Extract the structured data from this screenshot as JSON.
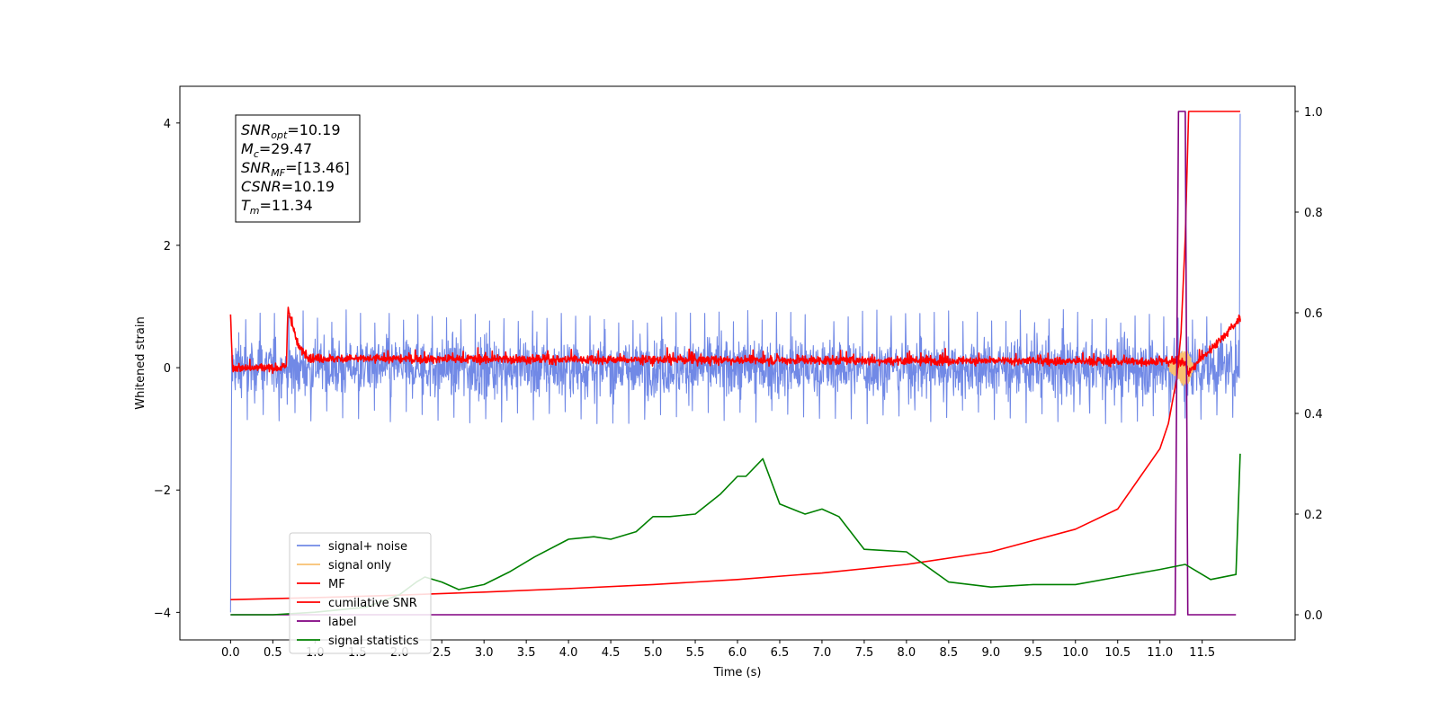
{
  "chart_data": {
    "type": "line",
    "title": "",
    "xlabel": "Time (s)",
    "ylabel": "Whitened strain",
    "y2label": "",
    "xlim": [
      -0.6,
      12.6
    ],
    "ylim": [
      -4.45,
      4.6
    ],
    "y2lim": [
      -0.05,
      1.05
    ],
    "x_ticks": [
      0.0,
      0.5,
      1.0,
      1.5,
      2.0,
      2.5,
      3.0,
      3.5,
      4.0,
      4.5,
      5.0,
      5.5,
      6.0,
      6.5,
      7.0,
      7.5,
      8.0,
      8.5,
      9.0,
      9.5,
      10.0,
      10.5,
      11.0,
      11.5
    ],
    "x_tick_labels": [
      "0.0",
      "0.5",
      "1.0",
      "1.5",
      "2.0",
      "2.5",
      "3.0",
      "3.5",
      "4.0",
      "4.5",
      "5.0",
      "5.5",
      "6.0",
      "6.5",
      "7.0",
      "7.5",
      "8.0",
      "8.5",
      "9.0",
      "9.5",
      "10.0",
      "10.5",
      "11.0",
      "11.5"
    ],
    "y_ticks": [
      -4,
      -2,
      0,
      2,
      4
    ],
    "y_tick_labels": [
      "−4",
      "−2",
      "0",
      "2",
      "4"
    ],
    "y2_ticks": [
      0.0,
      0.2,
      0.4,
      0.6,
      0.8,
      1.0
    ],
    "y2_tick_labels": [
      "0.0",
      "0.2",
      "0.4",
      "0.6",
      "0.8",
      "1.0"
    ],
    "grid": false,
    "legend_position": "lower-left",
    "annotation": [
      {
        "sym": "SNR",
        "sub": "opt",
        "val": "=10.19"
      },
      {
        "sym": "M",
        "sub": "c",
        "val": "=29.47"
      },
      {
        "sym": "SNR",
        "sub": "MF",
        "val": "=[13.46]"
      },
      {
        "sym": "CSNR",
        "sub": "",
        "val": "=10.19"
      },
      {
        "sym": "T",
        "sub": "m",
        "val": "=11.34"
      }
    ],
    "series": [
      {
        "name": "signal+ noise",
        "color": "#7189e6",
        "axis": "left",
        "style": "noise",
        "x_range": [
          0.0,
          11.95
        ],
        "amplitude": 0.28,
        "peak_max": 0.95,
        "peak_min": -0.92,
        "start_value": -4.0,
        "end_value": 4.15
      },
      {
        "name": "signal only",
        "color": "#f8c070",
        "axis": "left",
        "style": "chirp",
        "x": [
          11.1,
          11.2,
          11.28,
          11.34,
          11.4
        ],
        "envelope": [
          0.05,
          0.15,
          0.3,
          0.25,
          0.0
        ]
      },
      {
        "name": "MF",
        "color": "#ff0000",
        "axis": "left",
        "style": "mf",
        "x_range": [
          0.0,
          11.95
        ],
        "amplitude": 0.05,
        "points": [
          [
            0.0,
            0.87
          ],
          [
            0.02,
            0.1
          ],
          [
            0.66,
            0.0
          ],
          [
            0.68,
            1.0
          ],
          [
            0.72,
            0.75
          ],
          [
            0.8,
            0.35
          ],
          [
            0.95,
            0.15
          ],
          [
            11.3,
            0.1
          ],
          [
            11.32,
            -0.1
          ],
          [
            11.95,
            0.8
          ]
        ]
      },
      {
        "name": "cumilative SNR",
        "color": "#ff0000",
        "axis": "right",
        "x": [
          0.0,
          1.0,
          2.0,
          3.0,
          4.0,
          5.0,
          6.0,
          7.0,
          8.0,
          9.0,
          10.0,
          10.5,
          11.0,
          11.1,
          11.2,
          11.25,
          11.3,
          11.34,
          11.36,
          11.95
        ],
        "values": [
          0.03,
          0.034,
          0.039,
          0.045,
          0.052,
          0.06,
          0.07,
          0.083,
          0.1,
          0.125,
          0.17,
          0.21,
          0.33,
          0.38,
          0.47,
          0.56,
          0.75,
          1.0,
          1.0,
          1.0
        ]
      },
      {
        "name": "label",
        "color": "#800080",
        "axis": "right",
        "x": [
          0.0,
          11.18,
          11.22,
          11.3,
          11.33,
          11.37,
          11.9
        ],
        "values": [
          0.0,
          0.0,
          1.0,
          1.0,
          0.0,
          0.0,
          0.0
        ]
      },
      {
        "name": "signal statistics",
        "color": "#008000",
        "axis": "right",
        "x": [
          0.0,
          0.5,
          1.0,
          1.3,
          1.6,
          2.0,
          2.2,
          2.3,
          2.5,
          2.7,
          3.0,
          3.3,
          3.6,
          4.0,
          4.3,
          4.5,
          4.8,
          5.0,
          5.2,
          5.5,
          5.8,
          6.0,
          6.1,
          6.3,
          6.5,
          6.8,
          7.0,
          7.2,
          7.5,
          8.0,
          8.5,
          9.0,
          9.5,
          10.0,
          10.5,
          11.0,
          11.3,
          11.6,
          11.9,
          11.95
        ],
        "values": [
          0.0,
          0.0,
          0.005,
          0.01,
          0.015,
          0.04,
          0.065,
          0.075,
          0.065,
          0.05,
          0.06,
          0.085,
          0.115,
          0.15,
          0.155,
          0.15,
          0.165,
          0.195,
          0.195,
          0.2,
          0.24,
          0.275,
          0.275,
          0.31,
          0.22,
          0.2,
          0.21,
          0.195,
          0.13,
          0.125,
          0.065,
          0.055,
          0.06,
          0.06,
          0.075,
          0.09,
          0.1,
          0.07,
          0.08,
          0.32
        ]
      }
    ]
  }
}
